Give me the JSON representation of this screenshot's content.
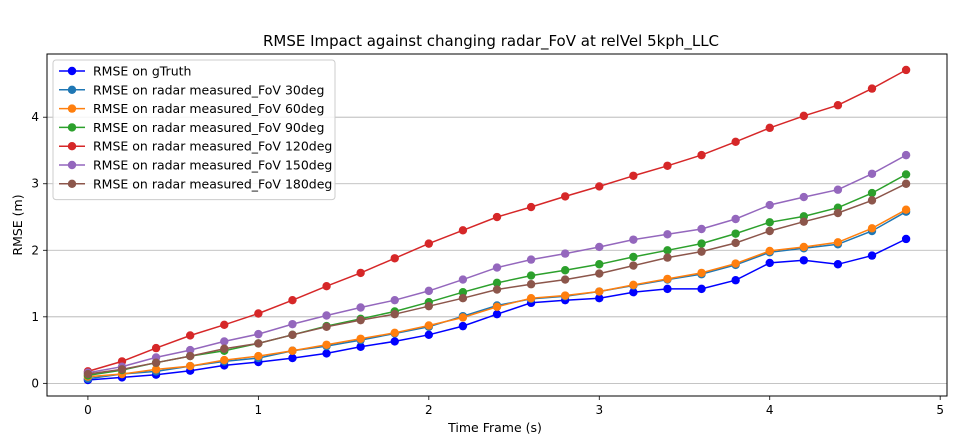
{
  "chart_data": {
    "type": "line",
    "title": "RMSE Impact against changing radar_FoV at relVel 5kph_LLC",
    "xlabel": "Time Frame (s)",
    "ylabel": "RMSE (m)",
    "xlim": [
      -0.24,
      5.04
    ],
    "ylim": [
      -0.19,
      4.95
    ],
    "xticks": [
      0,
      1,
      2,
      3,
      4,
      5
    ],
    "yticks": [
      0,
      1,
      2,
      3,
      4
    ],
    "grid": "horizontal",
    "legend_position": "top-left",
    "x": [
      0,
      0.2,
      0.4,
      0.6,
      0.8,
      1.0,
      1.2,
      1.4,
      1.6,
      1.8,
      2.0,
      2.2,
      2.4,
      2.6,
      2.8,
      3.0,
      3.2,
      3.4,
      3.6,
      3.8,
      4.0,
      4.2,
      4.4,
      4.6,
      4.8
    ],
    "series": [
      {
        "name": "RMSE on gTruth",
        "color": "#0000ff",
        "values": [
          0.05,
          0.09,
          0.13,
          0.19,
          0.27,
          0.32,
          0.38,
          0.45,
          0.55,
          0.63,
          0.73,
          0.86,
          1.04,
          1.21,
          1.25,
          1.28,
          1.37,
          1.42,
          1.42,
          1.55,
          1.81,
          1.85,
          1.79,
          1.92,
          2.17
        ]
      },
      {
        "name": "RMSE on radar measured_FoV 30deg",
        "color": "#1f77b4",
        "values": [
          0.07,
          0.14,
          0.18,
          0.26,
          0.33,
          0.38,
          0.49,
          0.56,
          0.65,
          0.75,
          0.85,
          1.01,
          1.17,
          1.27,
          1.31,
          1.38,
          1.47,
          1.56,
          1.64,
          1.78,
          1.97,
          2.03,
          2.09,
          2.29,
          2.58
        ]
      },
      {
        "name": "RMSE on radar measured_FoV 60deg",
        "color": "#ff7f0e",
        "values": [
          0.1,
          0.14,
          0.21,
          0.26,
          0.35,
          0.41,
          0.49,
          0.58,
          0.67,
          0.76,
          0.87,
          0.99,
          1.15,
          1.28,
          1.32,
          1.38,
          1.48,
          1.57,
          1.66,
          1.8,
          1.99,
          2.05,
          2.12,
          2.33,
          2.61
        ]
      },
      {
        "name": "RMSE on radar measured_FoV 90deg",
        "color": "#2ca02c",
        "values": [
          0.12,
          0.2,
          0.31,
          0.41,
          0.49,
          0.6,
          0.73,
          0.86,
          0.97,
          1.08,
          1.22,
          1.37,
          1.51,
          1.62,
          1.7,
          1.79,
          1.9,
          2.0,
          2.1,
          2.25,
          2.42,
          2.51,
          2.64,
          2.86,
          3.14
        ]
      },
      {
        "name": "RMSE on radar measured_FoV 120deg",
        "color": "#d62728",
        "values": [
          0.18,
          0.33,
          0.53,
          0.72,
          0.88,
          1.05,
          1.25,
          1.46,
          1.66,
          1.88,
          2.1,
          2.3,
          2.5,
          2.65,
          2.81,
          2.96,
          3.12,
          3.27,
          3.43,
          3.63,
          3.84,
          4.02,
          4.18,
          4.43,
          4.71
        ]
      },
      {
        "name": "RMSE on radar measured_FoV 150deg",
        "color": "#9467bd",
        "values": [
          0.16,
          0.25,
          0.39,
          0.5,
          0.63,
          0.74,
          0.89,
          1.02,
          1.14,
          1.25,
          1.39,
          1.56,
          1.74,
          1.86,
          1.95,
          2.05,
          2.16,
          2.24,
          2.32,
          2.47,
          2.68,
          2.8,
          2.91,
          3.15,
          3.43
        ]
      },
      {
        "name": "RMSE on radar measured_FoV 180deg",
        "color": "#8c564b",
        "values": [
          0.14,
          0.21,
          0.31,
          0.41,
          0.52,
          0.6,
          0.73,
          0.85,
          0.95,
          1.04,
          1.16,
          1.28,
          1.41,
          1.49,
          1.56,
          1.65,
          1.77,
          1.89,
          1.98,
          2.11,
          2.29,
          2.43,
          2.56,
          2.75,
          3.0
        ]
      }
    ]
  }
}
